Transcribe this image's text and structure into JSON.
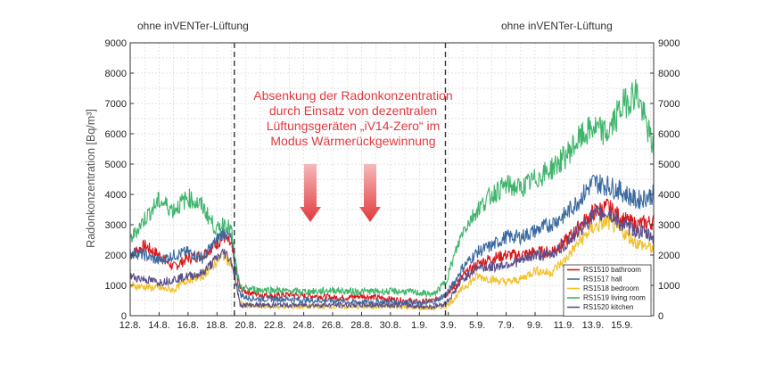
{
  "chart_data": {
    "type": "line",
    "ylabel": "Radonkonzentration [Bq/m³]",
    "ylim": [
      0,
      9000
    ],
    "yticks": [
      "0",
      "1000",
      "2000",
      "3000",
      "4000",
      "5000",
      "6000",
      "7000",
      "8000",
      "9000"
    ],
    "xlim": [
      0,
      36.2
    ],
    "xticks": [
      {
        "x": 0,
        "label": "12.8."
      },
      {
        "x": 2,
        "label": "14.8."
      },
      {
        "x": 4,
        "label": "16.8."
      },
      {
        "x": 6,
        "label": "18.8."
      },
      {
        "x": 8,
        "label": "20.8."
      },
      {
        "x": 10,
        "label": "22.8."
      },
      {
        "x": 12,
        "label": "24.8."
      },
      {
        "x": 14,
        "label": "26.8."
      },
      {
        "x": 16,
        "label": "28.8."
      },
      {
        "x": 18,
        "label": "30.8."
      },
      {
        "x": 20,
        "label": "1.9."
      },
      {
        "x": 22,
        "label": "3.9."
      },
      {
        "x": 24,
        "label": "5.9."
      },
      {
        "x": 26,
        "label": "7.9."
      },
      {
        "x": 28,
        "label": "9.9."
      },
      {
        "x": 30,
        "label": "11.9."
      },
      {
        "x": 32,
        "label": "13.9."
      },
      {
        "x": 34,
        "label": "15.9."
      }
    ],
    "grid": true,
    "legend_position": "bottom-right",
    "phase_dividers": [
      7.2,
      21.8
    ],
    "phase_labels": [
      "ohne inVENTer-Lüftung",
      "ohne inVENTer-Lüftung"
    ],
    "annotation": {
      "lines": [
        "Absenkung der Radonkonzentration",
        "durch Einsatz von dezentralen",
        "Lüftungsgeräten „iV14-Zero“ im",
        "Modus Wärmerückgewinnung"
      ],
      "color": "#e0393e"
    },
    "series": [
      {
        "name": "RS1510 bathroom",
        "color": "#d7191c",
        "x": [
          0,
          1,
          2,
          3,
          4,
          5,
          6,
          6.5,
          7,
          7.2,
          7.6,
          8,
          9,
          10,
          11,
          12,
          13,
          14,
          15,
          16,
          17,
          18,
          19,
          20,
          21,
          21.8,
          22.3,
          23,
          24,
          25,
          26,
          27,
          28,
          29,
          30,
          31,
          32,
          33,
          34,
          35,
          36.2
        ],
        "y": [
          2000,
          2300,
          2000,
          1600,
          1900,
          2000,
          2400,
          2600,
          2300,
          1700,
          900,
          800,
          700,
          650,
          700,
          650,
          650,
          600,
          600,
          650,
          600,
          550,
          500,
          450,
          500,
          700,
          900,
          1300,
          1700,
          1900,
          2000,
          2000,
          2100,
          2100,
          2400,
          2900,
          3400,
          3600,
          3200,
          3000,
          3100
        ]
      },
      {
        "name": "RS1517 hall",
        "color": "#3b6aa0",
        "x": [
          0,
          1,
          2,
          3,
          4,
          5,
          6,
          6.5,
          7,
          7.2,
          7.6,
          8,
          9,
          10,
          11,
          12,
          13,
          14,
          15,
          16,
          17,
          18,
          19,
          20,
          21,
          21.8,
          22.3,
          23,
          24,
          25,
          26,
          27,
          28,
          29,
          30,
          31,
          32,
          33,
          34,
          35,
          36.2
        ],
        "y": [
          2100,
          2000,
          1800,
          2000,
          2100,
          1900,
          2500,
          2800,
          2500,
          1800,
          700,
          600,
          550,
          550,
          550,
          500,
          500,
          500,
          450,
          450,
          450,
          450,
          450,
          400,
          450,
          700,
          1000,
          1600,
          2100,
          2300,
          2600,
          2600,
          2800,
          3000,
          3300,
          3800,
          4400,
          4300,
          4100,
          3800,
          4000
        ]
      },
      {
        "name": "RS1518 bedroom",
        "color": "#f2c12e",
        "x": [
          0,
          1,
          2,
          3,
          4,
          5,
          6,
          6.5,
          7,
          7.2,
          7.6,
          8,
          9,
          10,
          11,
          12,
          13,
          14,
          15,
          16,
          17,
          18,
          19,
          20,
          21,
          21.8,
          22.3,
          23,
          24,
          25,
          26,
          27,
          28,
          29,
          30,
          31,
          32,
          33,
          34,
          35,
          36.2
        ],
        "y": [
          1000,
          950,
          900,
          850,
          1200,
          1300,
          1800,
          2000,
          1700,
          1300,
          400,
          350,
          300,
          300,
          300,
          300,
          300,
          300,
          300,
          300,
          300,
          300,
          300,
          250,
          250,
          300,
          500,
          900,
          1300,
          1200,
          1100,
          1200,
          1500,
          1400,
          1800,
          2400,
          2900,
          3100,
          2800,
          2400,
          2200
        ]
      },
      {
        "name": "RS1519 living room",
        "color": "#3fb56b",
        "x": [
          0,
          1,
          2,
          3,
          4,
          5,
          6,
          6.5,
          7,
          7.2,
          7.6,
          8,
          9,
          10,
          11,
          12,
          13,
          14,
          15,
          16,
          17,
          18,
          19,
          20,
          21,
          21.8,
          22.3,
          23,
          24,
          25,
          26,
          27,
          28,
          29,
          30,
          31,
          32,
          33,
          34,
          35,
          36.2
        ],
        "y": [
          2500,
          3200,
          3800,
          3500,
          3900,
          3600,
          2800,
          3100,
          2800,
          2000,
          900,
          900,
          850,
          850,
          800,
          800,
          800,
          850,
          800,
          800,
          800,
          800,
          800,
          750,
          700,
          1100,
          1800,
          2800,
          3500,
          4000,
          4300,
          4200,
          4500,
          4800,
          5200,
          5800,
          6200,
          6000,
          6900,
          7400,
          5500
        ]
      },
      {
        "name": "RS1520 kitchen",
        "color": "#5b4f8c",
        "x": [
          0,
          1,
          2,
          3,
          4,
          5,
          6,
          6.5,
          7,
          7.2,
          7.6,
          8,
          9,
          10,
          11,
          12,
          13,
          14,
          15,
          16,
          17,
          18,
          19,
          20,
          21,
          21.8,
          22.3,
          23,
          24,
          25,
          26,
          27,
          28,
          29,
          30,
          31,
          32,
          33,
          34,
          35,
          36.2
        ],
        "y": [
          1300,
          1200,
          1100,
          1200,
          1300,
          1400,
          1900,
          2100,
          1800,
          1400,
          350,
          350,
          350,
          350,
          350,
          350,
          350,
          350,
          350,
          350,
          350,
          350,
          350,
          300,
          300,
          400,
          700,
          1200,
          1600,
          1600,
          1700,
          1800,
          2000,
          2000,
          2300,
          2800,
          3300,
          3400,
          3000,
          2800,
          2600
        ]
      }
    ]
  }
}
